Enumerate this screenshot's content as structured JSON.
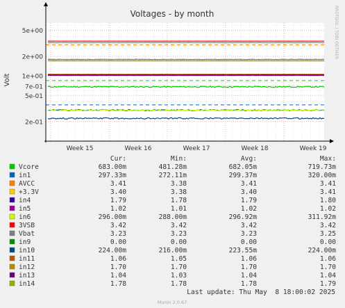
{
  "chart_data": {
    "type": "line",
    "title": "Voltages - by month",
    "ylabel": "Volt",
    "xlabel": "",
    "yscale": "log",
    "ylim": [
      0.1,
      6.5
    ],
    "y_ticks": [
      {
        "value": 5,
        "label": "5e+00"
      },
      {
        "value": 2,
        "label": "2e+00"
      },
      {
        "value": 1,
        "label": "1e+00"
      },
      {
        "value": 0.7,
        "label": "7e-01"
      },
      {
        "value": 0.5,
        "label": "5e-01"
      },
      {
        "value": 0.2,
        "label": "2e-01"
      }
    ],
    "x_ticks": [
      "Week 15",
      "Week 16",
      "Week 17",
      "Week 18",
      "Week 19"
    ],
    "grid": true,
    "side_label": "RRDTOOL / TOBI OETIKER",
    "footer": "Munin 2.0.67",
    "last_update": "Last update: Thu May  8 18:00:02 2025",
    "columns": [
      "Cur:",
      "Min:",
      "Avg:",
      "Max:"
    ],
    "series": [
      {
        "name": "Vcore",
        "color": "#00cc00",
        "value": 0.682,
        "warning": 0.85,
        "cur": "683.00m",
        "min": "481.28m",
        "avg": "682.05m",
        "max": "719.73m"
      },
      {
        "name": "in1",
        "color": "#0066b3",
        "value": 0.299,
        "warning": 0.36,
        "cur": "297.33m",
        "min": "272.11m",
        "avg": "299.37m",
        "max": "320.00m"
      },
      {
        "name": "AVCC",
        "color": "#ff8000",
        "value": 3.41,
        "warning": 3.0,
        "cur": "3.41",
        "min": "3.38",
        "avg": "3.41",
        "max": "3.41"
      },
      {
        "name": "+3.3V",
        "color": "#ffcc00",
        "value": 3.4,
        "cur": "3.40",
        "min": "3.38",
        "avg": "3.40",
        "max": "3.41"
      },
      {
        "name": "in4",
        "color": "#330099",
        "value": 1.79,
        "cur": "1.79",
        "min": "1.78",
        "avg": "1.79",
        "max": "1.80"
      },
      {
        "name": "in5",
        "color": "#990099",
        "value": 1.02,
        "cur": "1.02",
        "min": "1.01",
        "avg": "1.02",
        "max": "1.02"
      },
      {
        "name": "in6",
        "color": "#ccff00",
        "value": 0.297,
        "cur": "296.00m",
        "min": "288.00m",
        "avg": "296.92m",
        "max": "311.92m"
      },
      {
        "name": "3VSB",
        "color": "#ff0000",
        "value": 3.42,
        "cur": "3.42",
        "min": "3.42",
        "avg": "3.42",
        "max": "3.42"
      },
      {
        "name": "Vbat",
        "color": "#808080",
        "value": 3.23,
        "cur": "3.23",
        "min": "3.23",
        "avg": "3.23",
        "max": "3.25"
      },
      {
        "name": "in9",
        "color": "#008f00",
        "value": 0,
        "cur": "0.00",
        "min": "0.00",
        "avg": "0.00",
        "max": "0.00"
      },
      {
        "name": "in10",
        "color": "#00487d",
        "value": 0.2236,
        "cur": "224.00m",
        "min": "216.00m",
        "avg": "223.55m",
        "max": "224.00m"
      },
      {
        "name": "in11",
        "color": "#b35a00",
        "value": 1.06,
        "cur": "1.06",
        "min": "1.05",
        "avg": "1.06",
        "max": "1.06"
      },
      {
        "name": "in12",
        "color": "#b38f00",
        "value": 1.7,
        "cur": "1.70",
        "min": "1.70",
        "avg": "1.70",
        "max": "1.70"
      },
      {
        "name": "in13",
        "color": "#6b006b",
        "value": 1.04,
        "cur": "1.04",
        "min": "1.03",
        "avg": "1.04",
        "max": "1.04"
      },
      {
        "name": "in14",
        "color": "#8fb300",
        "value": 1.78,
        "cur": "1.78",
        "min": "1.78",
        "avg": "1.78",
        "max": "1.79"
      }
    ]
  }
}
